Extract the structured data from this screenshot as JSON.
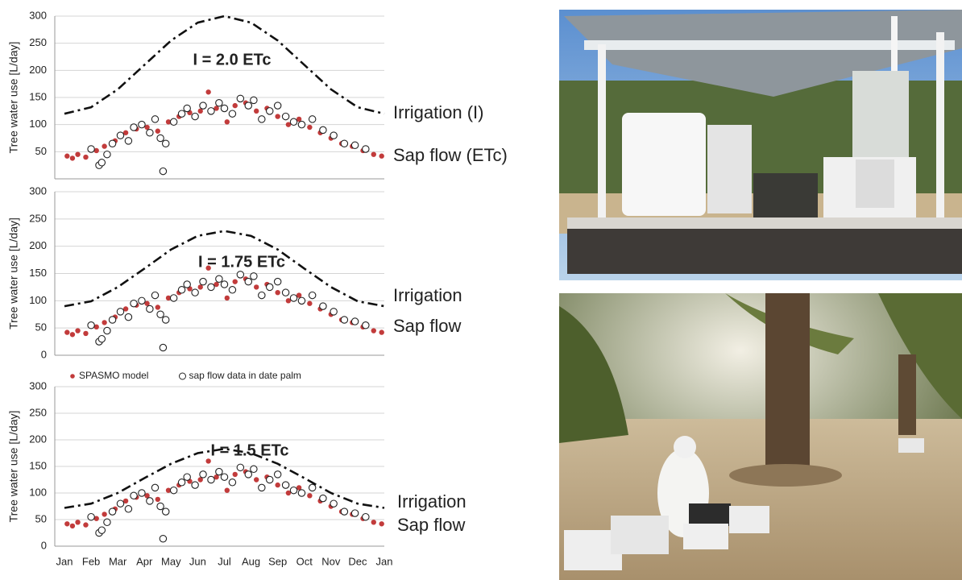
{
  "chart_data": [
    {
      "type": "scatter",
      "ylabel": "Tree water use [L/day]",
      "xlim": [
        0,
        12
      ],
      "ylim": [
        0,
        300
      ],
      "yticks": [
        50,
        100,
        150,
        200,
        250,
        300
      ],
      "grid": true,
      "annotations": [
        "I = 2.0 ETc",
        "Irrigation (I)",
        "Sap flow (ETc)"
      ],
      "series": [
        {
          "color": "#c23b3b",
          "marker": "dot",
          "x": [
            0.1,
            0.3,
            0.5,
            0.8,
            1.2,
            1.5,
            1.9,
            2.3,
            2.7,
            3.1,
            3.5,
            3.9,
            4.3,
            4.7,
            5.1,
            5.4,
            5.7,
            6.1,
            6.4,
            6.8,
            7.2,
            7.6,
            8.0,
            8.4,
            8.8,
            9.2,
            9.6,
            10.0,
            10.4,
            10.8,
            11.2,
            11.6,
            11.9
          ],
          "values": [
            42,
            38,
            45,
            40,
            52,
            60,
            70,
            85,
            92,
            95,
            88,
            105,
            115,
            122,
            125,
            160,
            130,
            105,
            135,
            140,
            125,
            130,
            115,
            100,
            110,
            95,
            85,
            75,
            65,
            60,
            52,
            45,
            42
          ]
        },
        {
          "color": "#222222",
          "marker": "open",
          "x": [
            1.0,
            1.3,
            1.4,
            1.6,
            1.8,
            2.1,
            2.4,
            2.6,
            2.9,
            3.2,
            3.4,
            3.6,
            3.7,
            3.8,
            4.1,
            4.4,
            4.6,
            4.9,
            5.2,
            5.5,
            5.8,
            6.0,
            6.3,
            6.6,
            6.9,
            7.1,
            7.4,
            7.7,
            8.0,
            8.3,
            8.6,
            8.9,
            9.3,
            9.7,
            10.1,
            10.5,
            10.9,
            11.3
          ],
          "values": [
            55,
            25,
            30,
            45,
            65,
            80,
            70,
            95,
            100,
            85,
            110,
            75,
            14,
            65,
            105,
            120,
            130,
            115,
            135,
            125,
            140,
            130,
            120,
            148,
            135,
            145,
            110,
            125,
            135,
            115,
            105,
            100,
            110,
            90,
            80,
            65,
            62,
            55
          ]
        },
        {
          "color": "#111111",
          "marker": "dashdot",
          "x": [
            0,
            1,
            2,
            3,
            4,
            5,
            6,
            7,
            8,
            9,
            10,
            11,
            12
          ],
          "values": [
            120,
            132,
            165,
            210,
            255,
            288,
            300,
            288,
            255,
            210,
            165,
            132,
            120
          ]
        }
      ]
    },
    {
      "type": "scatter",
      "ylabel": "Tree water use [L/day]",
      "xlim": [
        0,
        12
      ],
      "ylim": [
        0,
        300
      ],
      "yticks": [
        0,
        50,
        100,
        150,
        200,
        250,
        300
      ],
      "grid": true,
      "annotations": [
        "I = 1.75 ETc",
        "Irrigation",
        "Sap flow"
      ],
      "series": [
        {
          "color": "#c23b3b",
          "marker": "dot",
          "x": [
            0.1,
            0.3,
            0.5,
            0.8,
            1.2,
            1.5,
            1.9,
            2.3,
            2.7,
            3.1,
            3.5,
            3.9,
            4.3,
            4.7,
            5.1,
            5.4,
            5.7,
            6.1,
            6.4,
            6.8,
            7.2,
            7.6,
            8.0,
            8.4,
            8.8,
            9.2,
            9.6,
            10.0,
            10.4,
            10.8,
            11.2,
            11.6,
            11.9
          ],
          "values": [
            42,
            38,
            45,
            40,
            52,
            60,
            70,
            85,
            92,
            95,
            88,
            105,
            115,
            122,
            125,
            160,
            130,
            105,
            135,
            140,
            125,
            130,
            115,
            100,
            110,
            95,
            85,
            75,
            65,
            60,
            52,
            45,
            42
          ]
        },
        {
          "color": "#222222",
          "marker": "open",
          "x": [
            1.0,
            1.3,
            1.4,
            1.6,
            1.8,
            2.1,
            2.4,
            2.6,
            2.9,
            3.2,
            3.4,
            3.6,
            3.7,
            3.8,
            4.1,
            4.4,
            4.6,
            4.9,
            5.2,
            5.5,
            5.8,
            6.0,
            6.3,
            6.6,
            6.9,
            7.1,
            7.4,
            7.7,
            8.0,
            8.3,
            8.6,
            8.9,
            9.3,
            9.7,
            10.1,
            10.5,
            10.9,
            11.3
          ],
          "values": [
            55,
            25,
            30,
            45,
            65,
            80,
            70,
            95,
            100,
            85,
            110,
            75,
            14,
            65,
            105,
            120,
            130,
            115,
            135,
            125,
            140,
            130,
            120,
            148,
            135,
            145,
            110,
            125,
            135,
            115,
            105,
            100,
            110,
            90,
            80,
            65,
            62,
            55
          ]
        },
        {
          "color": "#111111",
          "marker": "dashdot",
          "x": [
            0,
            1,
            2,
            3,
            4,
            5,
            6,
            7,
            8,
            9,
            10,
            11,
            12
          ],
          "values": [
            90,
            99,
            125,
            159,
            194,
            219,
            228,
            219,
            194,
            159,
            125,
            99,
            90
          ]
        }
      ]
    },
    {
      "type": "scatter",
      "ylabel": "Tree water use [L/day]",
      "xlim": [
        0,
        12
      ],
      "ylim": [
        0,
        300
      ],
      "yticks": [
        0,
        50,
        100,
        150,
        200,
        250,
        300
      ],
      "grid": true,
      "legend": true,
      "xticks": [
        {
          "value": 0,
          "label": "Jan"
        },
        {
          "value": 1,
          "label": "Feb"
        },
        {
          "value": 2,
          "label": "Mar"
        },
        {
          "value": 3,
          "label": "Apr"
        },
        {
          "value": 4,
          "label": "May"
        },
        {
          "value": 5,
          "label": "Jun"
        },
        {
          "value": 6,
          "label": "Jul"
        },
        {
          "value": 7,
          "label": "Aug"
        },
        {
          "value": 8,
          "label": "Sep"
        },
        {
          "value": 9,
          "label": "Oct"
        },
        {
          "value": 10,
          "label": "Nov"
        },
        {
          "value": 11,
          "label": "Dec"
        },
        {
          "value": 12,
          "label": "Jan"
        }
      ],
      "annotations": [
        "I = 1.5 ETc",
        "Irrigation",
        "Sap flow"
      ],
      "series": [
        {
          "name": "SPASMO model",
          "color": "#c23b3b",
          "marker": "dot",
          "x": [
            0.1,
            0.3,
            0.5,
            0.8,
            1.2,
            1.5,
            1.9,
            2.3,
            2.7,
            3.1,
            3.5,
            3.9,
            4.3,
            4.7,
            5.1,
            5.4,
            5.7,
            6.1,
            6.4,
            6.8,
            7.2,
            7.6,
            8.0,
            8.4,
            8.8,
            9.2,
            9.6,
            10.0,
            10.4,
            10.8,
            11.2,
            11.6,
            11.9
          ],
          "values": [
            42,
            38,
            45,
            40,
            52,
            60,
            70,
            85,
            92,
            95,
            88,
            105,
            115,
            122,
            125,
            160,
            130,
            105,
            135,
            140,
            125,
            130,
            115,
            100,
            110,
            95,
            85,
            75,
            65,
            60,
            52,
            45,
            42
          ]
        },
        {
          "name": "sap flow data in date palm",
          "color": "#222222",
          "marker": "open",
          "x": [
            1.0,
            1.3,
            1.4,
            1.6,
            1.8,
            2.1,
            2.4,
            2.6,
            2.9,
            3.2,
            3.4,
            3.6,
            3.7,
            3.8,
            4.1,
            4.4,
            4.6,
            4.9,
            5.2,
            5.5,
            5.8,
            6.0,
            6.3,
            6.6,
            6.9,
            7.1,
            7.4,
            7.7,
            8.0,
            8.3,
            8.6,
            8.9,
            9.3,
            9.7,
            10.1,
            10.5,
            10.9,
            11.3
          ],
          "values": [
            55,
            25,
            30,
            45,
            65,
            80,
            70,
            95,
            100,
            85,
            110,
            75,
            14,
            65,
            105,
            120,
            130,
            115,
            135,
            125,
            140,
            130,
            120,
            148,
            135,
            145,
            110,
            125,
            135,
            115,
            105,
            100,
            110,
            90,
            80,
            65,
            62,
            55
          ]
        },
        {
          "color": "#111111",
          "marker": "dashdot",
          "x": [
            0,
            1,
            2,
            3,
            4,
            5,
            6,
            7,
            8,
            9,
            10,
            11,
            12
          ],
          "values": [
            72,
            80,
            100,
            128,
            155,
            175,
            183,
            175,
            155,
            128,
            100,
            80,
            72
          ]
        }
      ]
    }
  ]
}
